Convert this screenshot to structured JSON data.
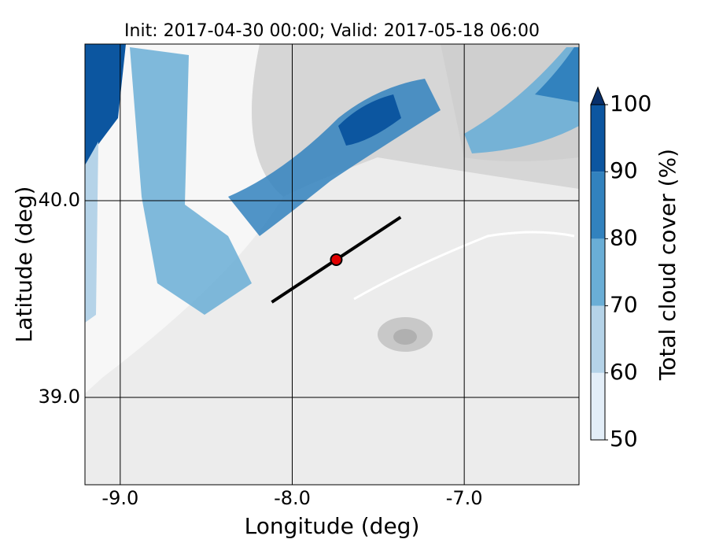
{
  "chart_data": {
    "type": "contour_map",
    "title": "Init: 2017-04-30 00:00; Valid: 2017-05-18 06:00",
    "x_label": "Longitude (deg)",
    "y_label": "Latitude (deg)",
    "xlim": [
      -9.205,
      -6.333
    ],
    "ylim": [
      38.556,
      40.796
    ],
    "xticks": [
      {
        "value": -9,
        "label": "-9.0"
      },
      {
        "value": -8,
        "label": "-8.0"
      },
      {
        "value": -7,
        "label": "-7.0"
      }
    ],
    "yticks": [
      {
        "value": 39,
        "label": "39.0"
      },
      {
        "value": 40,
        "label": "40.0"
      }
    ],
    "grid": true,
    "transect": {
      "x": [
        -8.119,
        -7.37
      ],
      "y": [
        39.484,
        39.916
      ],
      "color": "#000000"
    },
    "point": {
      "x": -7.744,
      "y": 39.7,
      "color": "#e00000"
    },
    "colorbar": {
      "label": "Total cloud cover (%)",
      "levels": [
        50,
        60,
        70,
        80,
        90,
        100
      ],
      "colors": [
        "#e3eef8",
        "#b5d3e8",
        "#6aaed6",
        "#3282be",
        "#0c56a0"
      ],
      "extend_color": "#08306b",
      "ticks": [
        50,
        60,
        70,
        80,
        90,
        100
      ]
    }
  }
}
